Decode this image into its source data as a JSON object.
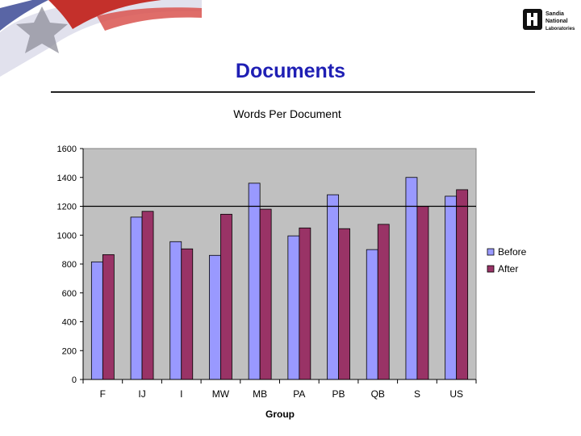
{
  "slide": {
    "title": "Documents",
    "logo_text": [
      "Sandia",
      "National",
      "Laboratories"
    ]
  },
  "chart_data": {
    "type": "bar",
    "title": "Words Per Document",
    "xlabel": "Group",
    "ylabel": "",
    "ylim": [
      0,
      1600
    ],
    "yticks": [
      0,
      200,
      400,
      600,
      800,
      1000,
      1200,
      1400,
      1600
    ],
    "categories": [
      "F",
      "IJ",
      "I",
      "MW",
      "MB",
      "PA",
      "PB",
      "QB",
      "S",
      "US"
    ],
    "series": [
      {
        "name": "Before",
        "color": "#9999ff",
        "values": [
          815,
          1125,
          955,
          860,
          1360,
          995,
          1280,
          900,
          1400,
          1270
        ]
      },
      {
        "name": "After",
        "color": "#993366",
        "values": [
          865,
          1165,
          905,
          1145,
          1180,
          1050,
          1045,
          1075,
          1200,
          1315
        ]
      }
    ],
    "reference_line": 1200,
    "plot_background": "#c0c0c0",
    "grid": false,
    "legend_position": "right"
  }
}
